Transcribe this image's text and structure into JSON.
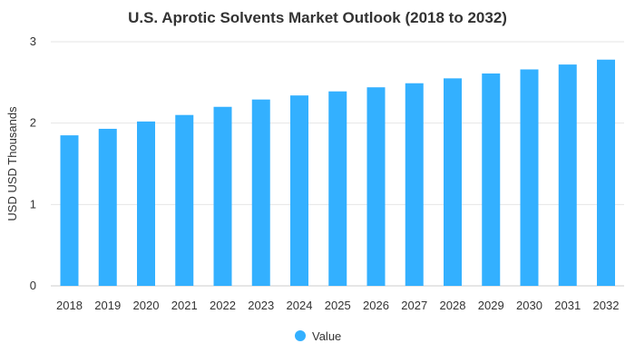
{
  "chart_data": {
    "type": "bar",
    "title": "U.S. Aprotic Solvents Market Outlook (2018 to 2032)",
    "xlabel": "",
    "ylabel": "USD USD Thousands",
    "categories": [
      "2018",
      "2019",
      "2020",
      "2021",
      "2022",
      "2023",
      "2024",
      "2025",
      "2026",
      "2027",
      "2028",
      "2029",
      "2030",
      "2031",
      "2032"
    ],
    "series": [
      {
        "name": "Value",
        "values": [
          1.85,
          1.93,
          2.02,
          2.1,
          2.2,
          2.29,
          2.34,
          2.39,
          2.44,
          2.49,
          2.55,
          2.61,
          2.66,
          2.72,
          2.78
        ],
        "color": "#33b0ff"
      }
    ],
    "ylim": [
      0,
      3
    ],
    "yticks": [
      "0",
      "1",
      "2",
      "3"
    ],
    "grid": true,
    "legend_position": "bottom-center"
  }
}
